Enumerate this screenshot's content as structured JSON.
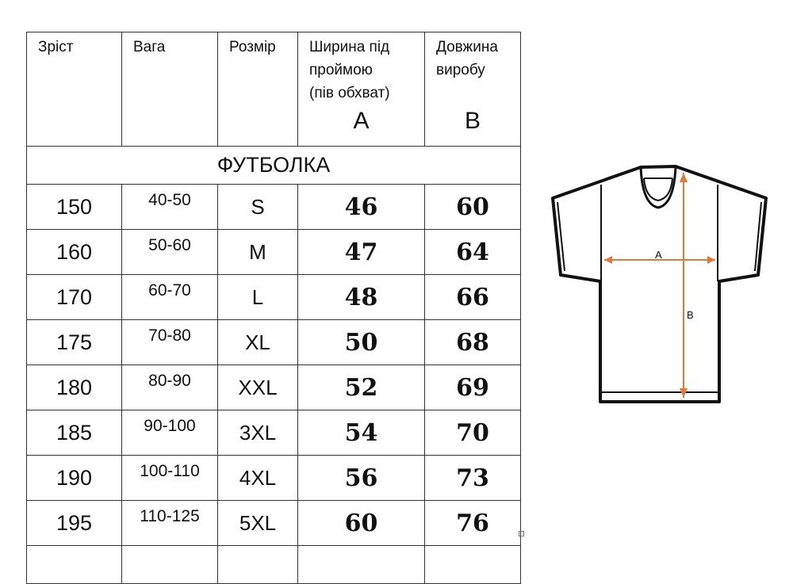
{
  "headers": {
    "height": "Зріст",
    "weight": "Вага",
    "size": "Розмір",
    "width_lines": [
      "Ширина під",
      "проймою",
      "(пів обхват)"
    ],
    "width_letter": "A",
    "length_lines": [
      "Довжина",
      "виробу"
    ],
    "length_letter": "B"
  },
  "section_title": "ФУТБОЛКА",
  "rows": [
    {
      "height": "150",
      "weight": "40-50",
      "size": "S",
      "a": "46",
      "b": "60"
    },
    {
      "height": "160",
      "weight": "50-60",
      "size": "M",
      "a": "47",
      "b": "64"
    },
    {
      "height": "170",
      "weight": "60-70",
      "size": "L",
      "a": "48",
      "b": "66"
    },
    {
      "height": "175",
      "weight": "70-80",
      "size": "XL",
      "a": "50",
      "b": "68"
    },
    {
      "height": "180",
      "weight": "80-90",
      "size": "XXL",
      "a": "52",
      "b": "69"
    },
    {
      "height": "185",
      "weight": "90-100",
      "size": "3XL",
      "a": "54",
      "b": "70"
    },
    {
      "height": "190",
      "weight": "100-110",
      "size": "4XL",
      "a": "56",
      "b": "73"
    },
    {
      "height": "195",
      "weight": "110-125",
      "size": "5XL",
      "a": "60",
      "b": "76"
    }
  ],
  "diagram": {
    "label_a": "A",
    "label_b": "B",
    "arrow_color": "#e07a3a",
    "outline_color": "#111111"
  }
}
